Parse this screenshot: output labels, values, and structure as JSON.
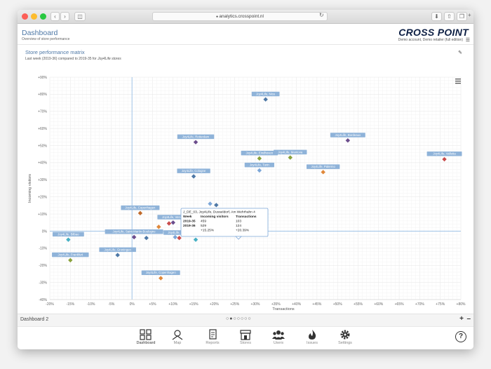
{
  "browser": {
    "url": "analytics.crosspoint.nl"
  },
  "header": {
    "title": "Dashboard",
    "subtitle": "Overview of store performance",
    "brand": "CROSS POINT",
    "account": "Demo account, Demo retailer (full edition)"
  },
  "card": {
    "title": "Store performance matrix",
    "subtitle_prefix": "Last week (2019-36) compared to 2019-35 for ",
    "subtitle_italic": "Joy4Life stores"
  },
  "chart_data": {
    "type": "scatter",
    "title": "",
    "xlabel": "Transactions",
    "ylabel": "Incoming visitors",
    "xlim": [
      -20,
      80
    ],
    "ylim": [
      -40,
      90
    ],
    "x_ticks": [
      -20,
      -15,
      -10,
      -5,
      0,
      5,
      10,
      15,
      20,
      25,
      30,
      35,
      40,
      45,
      50,
      55,
      60,
      65,
      70,
      75,
      80
    ],
    "x_tick_labels": [
      "-20%",
      "-15%",
      "-10%",
      "-5%",
      "0%",
      "+5%",
      "+10%",
      "+15%",
      "+20%",
      "+25%",
      "+30%",
      "+35%",
      "+40%",
      "+45%",
      "+50%",
      "+55%",
      "+60%",
      "+65%",
      "+70%",
      "+75%",
      "+80%"
    ],
    "y_ticks": [
      90,
      80,
      70,
      60,
      50,
      40,
      30,
      20,
      10,
      0,
      -10,
      -20,
      -30,
      -40
    ],
    "y_tick_labels": [
      "+90%",
      "+80%",
      "+70%",
      "+60%",
      "+50%",
      "+40%",
      "+30%",
      "+20%",
      "+10%",
      "0%",
      "-10%",
      "-20%",
      "-30%",
      "-40%"
    ],
    "grid": true,
    "points": [
      {
        "x": 32.5,
        "y": 77,
        "label": "Joy4Life, Nice",
        "color": "#4e78a6"
      },
      {
        "x": 52.5,
        "y": 53,
        "label": "Joy4Life, Bordeaux",
        "color": "#6b4c8c"
      },
      {
        "x": 15.5,
        "y": 52,
        "label": "Joy4Life, Rotterdam",
        "color": "#6b4c8c"
      },
      {
        "x": 31,
        "y": 42.5,
        "label": "Joy4Life, Eindhoven",
        "color": "#8aa23c"
      },
      {
        "x": 38.5,
        "y": 43,
        "label": "Joy4Life, Mantova",
        "color": "#8aa23c"
      },
      {
        "x": 76,
        "y": 42,
        "label": "Joy4Life, Valletta",
        "color": "#c94c4c"
      },
      {
        "x": 46.5,
        "y": 34.5,
        "label": "Joy4Life, Palermo",
        "color": "#e0883a"
      },
      {
        "x": 31,
        "y": 35.5,
        "label": "Joy4Life, Turin",
        "color": "#7da7d8"
      },
      {
        "x": 15,
        "y": 32,
        "label": "Joy4Life, Cologne",
        "color": "#4e78a6"
      },
      {
        "x": 20.5,
        "y": 15.25,
        "label": "",
        "color": "#4e78a6"
      },
      {
        "x": 19,
        "y": 16,
        "label": "",
        "color": "#7da7d8"
      },
      {
        "x": 2,
        "y": 10.5,
        "label": "Joy4Life, Copenhagen",
        "color": "#c06a2a"
      },
      {
        "x": 10,
        "y": 5,
        "label": "Joy4Life, Venice",
        "color": "#6b4c8c"
      },
      {
        "x": 9,
        "y": 4.5,
        "label": "",
        "color": "#c94c4c"
      },
      {
        "x": 6.5,
        "y": 2.5,
        "label": "",
        "color": "#e0883a"
      },
      {
        "x": 11.5,
        "y": -4,
        "label": "Joy4Life, Malaga",
        "color": "#c94c4c"
      },
      {
        "x": 10.5,
        "y": -3.5,
        "label": "",
        "color": "#7da7d8"
      },
      {
        "x": 15.5,
        "y": -5,
        "label": "",
        "color": "#45b0c4"
      },
      {
        "x": 0.5,
        "y": -3.5,
        "label": "Joy4Life, Saint-Martin-Boulogne",
        "color": "#6b4c8c"
      },
      {
        "x": 3.5,
        "y": -4,
        "label": "",
        "color": "#4e78a6"
      },
      {
        "x": -15.5,
        "y": -5,
        "label": "Joy4Life, Bilbao",
        "color": "#45b0c4"
      },
      {
        "x": -3.5,
        "y": -14,
        "label": "Joy4Life, Groningen",
        "color": "#4e78a6"
      },
      {
        "x": -15,
        "y": -17,
        "label": "Joy4Life, Frankfurt",
        "color": "#8aa23c"
      },
      {
        "x": 7,
        "y": -27.5,
        "label": "Joy4Life, Copenhagen",
        "color": "#e0883a"
      }
    ],
    "tooltip": {
      "store": "J_DE_03, Joy4Life, Dusseldorf, Am Wehrhahn 4",
      "columns": [
        "Week",
        "Incoming visitors",
        "Transactions"
      ],
      "rows": [
        {
          "week": "2019-35",
          "visitors": "459",
          "transactions": "103"
        },
        {
          "week": "2019-36",
          "visitors": "529",
          "transactions": "124"
        }
      ],
      "diff_visitors": "+15.25%",
      "diff_transactions": "+20.39%"
    }
  },
  "footer": {
    "dashboard_name": "Dashboard 2",
    "pages": 7,
    "active_page": 1
  },
  "nav": {
    "items": [
      {
        "label": "Dashboard",
        "icon": "dashboard-icon"
      },
      {
        "label": "Map",
        "icon": "map-pin-icon"
      },
      {
        "label": "Reports",
        "icon": "report-icon"
      },
      {
        "label": "Stores",
        "icon": "store-icon"
      },
      {
        "label": "Users",
        "icon": "users-icon"
      },
      {
        "label": "Issues",
        "icon": "fire-icon"
      },
      {
        "label": "Settings",
        "icon": "gear-icon"
      }
    ]
  }
}
